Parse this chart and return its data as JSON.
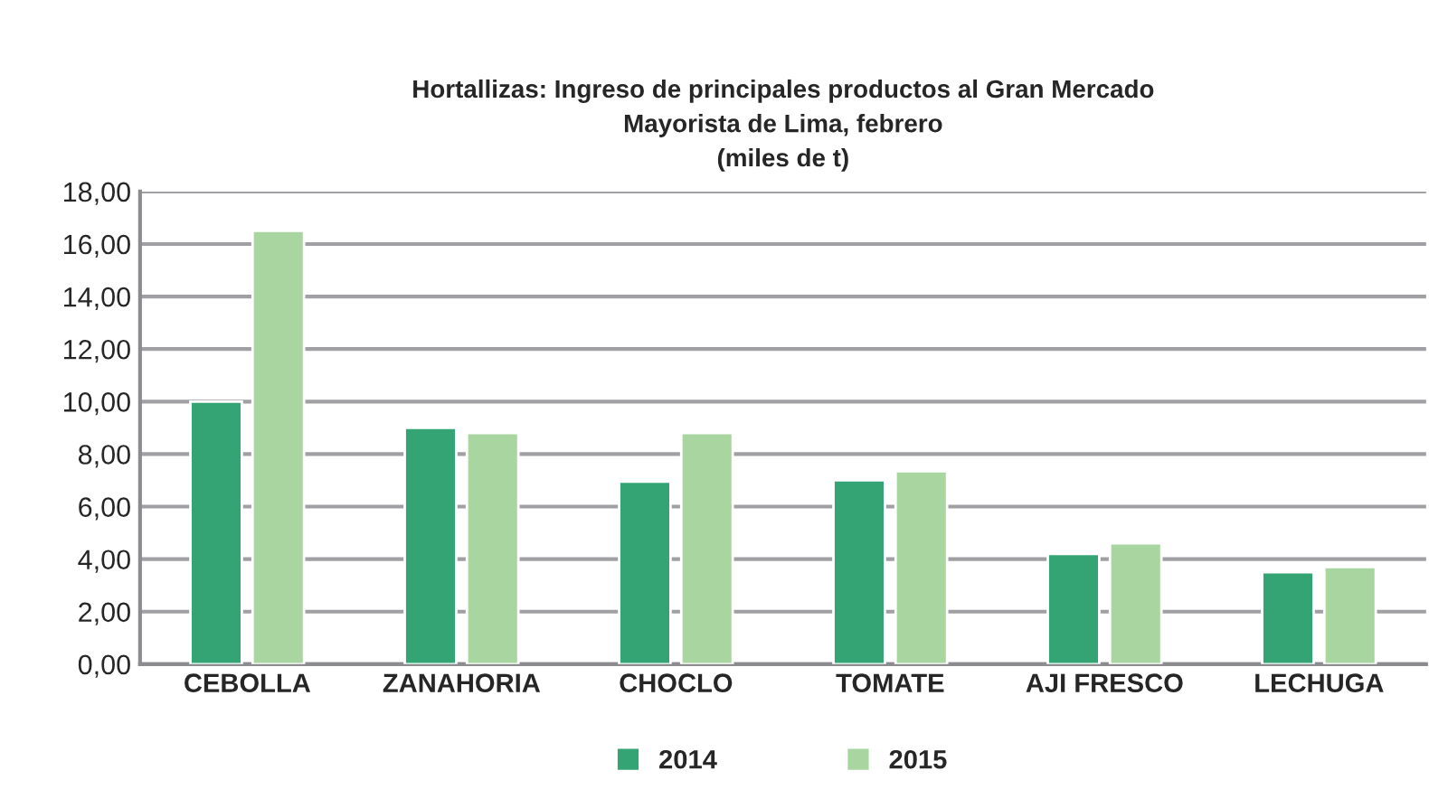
{
  "chart_data": {
    "type": "bar",
    "title": "Hortallizas: Ingreso de principales productos al Gran Mercado\nMayorista de Lima, febrero\n(miles de t)",
    "categories": [
      "CEBOLLA",
      "ZANAHORIA",
      "CHOCLO",
      "TOMATE",
      "AJI FRESCO",
      "LECHUGA"
    ],
    "series": [
      {
        "name": "2014",
        "color": "#34a474",
        "values": [
          10.0,
          9.0,
          6.95,
          7.0,
          4.2,
          3.5
        ]
      },
      {
        "name": "2015",
        "color": "#a8d5a0",
        "values": [
          16.5,
          8.8,
          8.8,
          7.35,
          4.6,
          3.7
        ]
      }
    ],
    "ylim": [
      0,
      18
    ],
    "yticks": [
      {
        "value": 0,
        "label": "0,00"
      },
      {
        "value": 2,
        "label": "2,00"
      },
      {
        "value": 4,
        "label": "4,00"
      },
      {
        "value": 6,
        "label": "6,00"
      },
      {
        "value": 8,
        "label": "8,00"
      },
      {
        "value": 10,
        "label": "10,00"
      },
      {
        "value": 12,
        "label": "12,00"
      },
      {
        "value": 14,
        "label": "14,00"
      },
      {
        "value": 16,
        "label": "16,00"
      },
      {
        "value": 18,
        "label": "18,00"
      }
    ],
    "grid": "y",
    "legend": "bottom"
  }
}
